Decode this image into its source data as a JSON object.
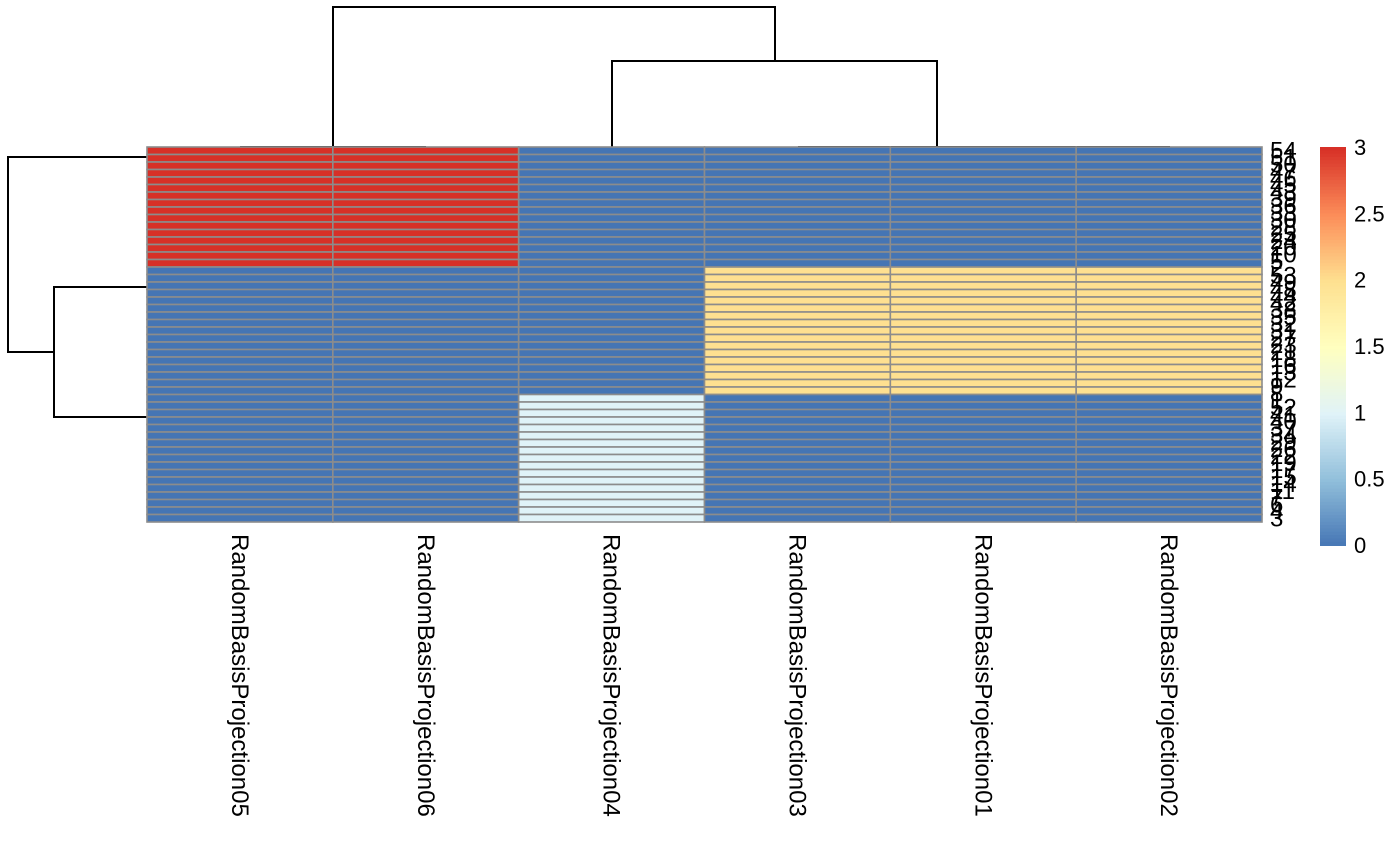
{
  "chart_data": {
    "type": "heatmap",
    "title": "",
    "columns": [
      "RandomBasisProjection05",
      "RandomBasisProjection06",
      "RandomBasisProjection04",
      "RandomBasisProjection03",
      "RandomBasisProjection01",
      "RandomBasisProjection02"
    ],
    "row_groups": [
      {
        "rows": [
          "54",
          "51",
          "50",
          "47",
          "46",
          "45",
          "43",
          "39",
          "36",
          "33",
          "30",
          "28",
          "25",
          "24",
          "20",
          "10"
        ],
        "values": [
          3,
          3,
          0,
          0,
          0,
          0
        ]
      },
      {
        "rows": [
          "53",
          "49",
          "48",
          "44",
          "42",
          "38",
          "35",
          "32",
          "31",
          "27",
          "23",
          "21",
          "18",
          "16",
          "12",
          "9",
          "8"
        ],
        "values": [
          0,
          0,
          0,
          2,
          2,
          2
        ]
      },
      {
        "rows": [
          "52",
          "41",
          "40",
          "37",
          "34",
          "29",
          "26",
          "22",
          "19",
          "17",
          "15",
          "14",
          "11",
          "7",
          "6",
          "4",
          "3"
        ],
        "values": [
          0,
          0,
          1,
          0,
          0,
          0
        ]
      }
    ],
    "row_label_samples": [
      "54",
      "51",
      "50",
      "47",
      "46",
      "45",
      "43",
      "39",
      "36",
      "33",
      "30",
      "28",
      "25",
      "24",
      "20",
      "10",
      "5",
      "2",
      "53",
      "49",
      "48",
      "44",
      "42",
      "38",
      "35",
      "32",
      "31",
      "27",
      "23",
      "21",
      "18",
      "16",
      "13",
      "12",
      "9",
      "8",
      "1",
      "52",
      "41",
      "40",
      "37",
      "34",
      "29",
      "26",
      "22",
      "19",
      "17",
      "15",
      "14",
      "11",
      "7",
      "6",
      "4",
      "3"
    ],
    "color_scale": {
      "min": 0,
      "max": 3,
      "stops": [
        {
          "value": 0,
          "color": "#4575B4"
        },
        {
          "value": 0.5,
          "color": "#91BFDB"
        },
        {
          "value": 1,
          "color": "#E0F3F8"
        },
        {
          "value": 1.5,
          "color": "#FFFFBF"
        },
        {
          "value": 2,
          "color": "#FEE090"
        },
        {
          "value": 2.5,
          "color": "#FC8D59"
        },
        {
          "value": 3,
          "color": "#D73027"
        }
      ],
      "ticks": [
        "0",
        "0.5",
        "1",
        "1.5",
        "2",
        "2.5",
        "3"
      ]
    },
    "col_dendrogram": [
      {
        "a": 2,
        "b": 3,
        "h": 0.55
      },
      {
        "a": 4,
        "b": 5,
        "h": 0.4
      },
      {
        "a": 3,
        "b": 4.5,
        "h": 0.55
      }
    ],
    "row_dendrogram": "three clusters; cluster 2 and 3 join first, then cluster 1",
    "grid": true,
    "legend": "right"
  }
}
